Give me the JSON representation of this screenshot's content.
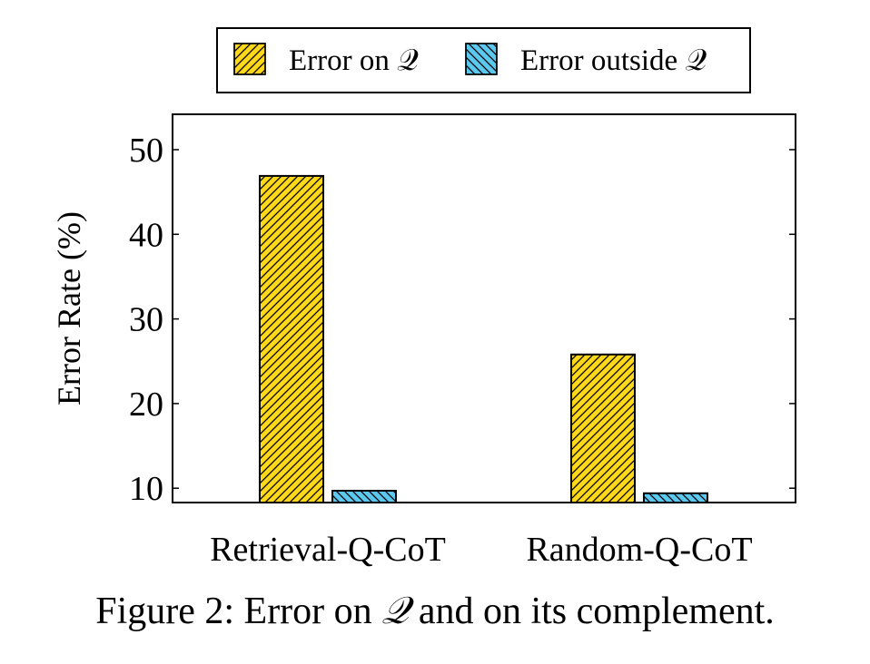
{
  "chart_data": {
    "type": "bar",
    "categories": [
      "Retrieval-Q-CoT",
      "Random-Q-CoT"
    ],
    "series": [
      {
        "name": "Error on 𝒬",
        "values": [
          46.9,
          25.8
        ],
        "color": "#FFD81A",
        "hatch": "north-east"
      },
      {
        "name": "Error outside 𝒬",
        "values": [
          9.7,
          9.4
        ],
        "color": "#5BC8F0",
        "hatch": "north-west"
      }
    ],
    "title": "",
    "xlabel": "",
    "ylabel": "Error Rate (%)",
    "ylim": [
      0,
      50
    ],
    "yticks": [
      10,
      20,
      30,
      40,
      50
    ],
    "grid": false,
    "legend_position": "top-center"
  },
  "caption": {
    "prefix": "Figure 2: Error on ",
    "symbol": "𝒬",
    "suffix": " and on its complement."
  }
}
